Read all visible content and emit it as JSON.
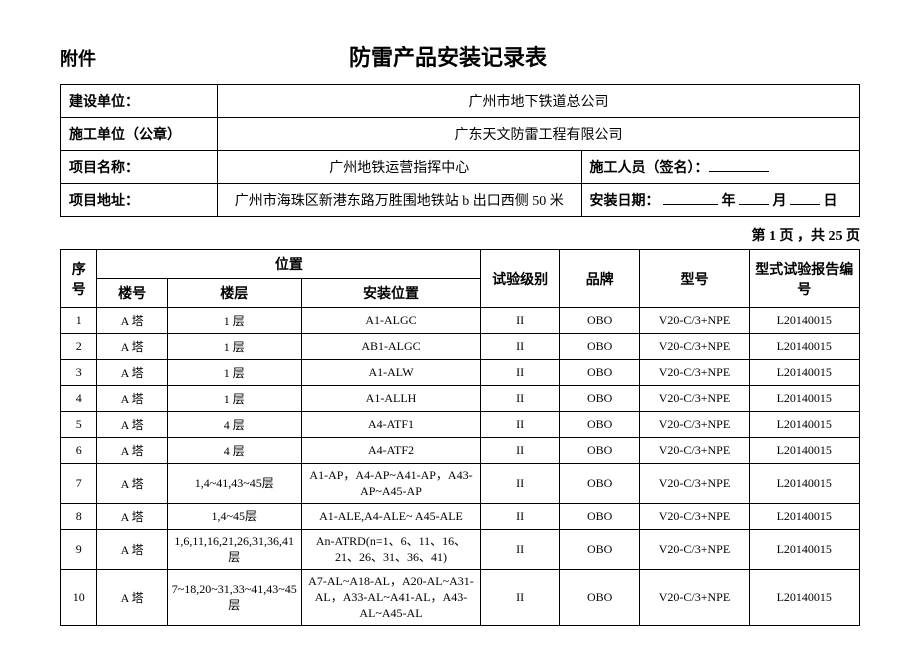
{
  "header": {
    "attachment": "附件",
    "title": "防雷产品安装记录表"
  },
  "info": {
    "builder_label": "建设单位：",
    "builder_value": "广州市地下铁道总公司",
    "contractor_label": "施工单位（公章）",
    "contractor_value": "广东天文防雷工程有限公司",
    "project_name_label": "项目名称：",
    "project_name_value": "广州地铁运营指挥中心",
    "staff_label": "施工人员（签名）：",
    "address_label": "项目地址：",
    "address_value": "广州市海珠区新港东路万胜围地铁站 b 出口西侧 50 米",
    "install_date_label": "安装日期：",
    "year_unit": "年",
    "month_unit": "月",
    "day_unit": "日"
  },
  "pager": {
    "text": "第 1 页 ，共 25 页"
  },
  "table": {
    "headers": {
      "seq": "序号",
      "location": "位置",
      "building": "楼号",
      "floor": "楼层",
      "position": "安装位置",
      "test_level": "试验级别",
      "brand": "品牌",
      "model": "型号",
      "report_no": "型式试验报告编号"
    },
    "rows": [
      {
        "seq": "1",
        "building": "A 塔",
        "floor": "1 层",
        "position": "A1-ALGC",
        "level": "II",
        "brand": "OBO",
        "model": "V20-C/3+NPE",
        "report": "L20140015"
      },
      {
        "seq": "2",
        "building": "A 塔",
        "floor": "1 层",
        "position": "AB1-ALGC",
        "level": "II",
        "brand": "OBO",
        "model": "V20-C/3+NPE",
        "report": "L20140015"
      },
      {
        "seq": "3",
        "building": "A 塔",
        "floor": "1 层",
        "position": "A1-ALW",
        "level": "II",
        "brand": "OBO",
        "model": "V20-C/3+NPE",
        "report": "L20140015"
      },
      {
        "seq": "4",
        "building": "A 塔",
        "floor": "1 层",
        "position": "A1-ALLH",
        "level": "II",
        "brand": "OBO",
        "model": "V20-C/3+NPE",
        "report": "L20140015"
      },
      {
        "seq": "5",
        "building": "A 塔",
        "floor": "4 层",
        "position": "A4-ATF1",
        "level": "II",
        "brand": "OBO",
        "model": "V20-C/3+NPE",
        "report": "L20140015"
      },
      {
        "seq": "6",
        "building": "A 塔",
        "floor": "4 层",
        "position": "A4-ATF2",
        "level": "II",
        "brand": "OBO",
        "model": "V20-C/3+NPE",
        "report": "L20140015"
      },
      {
        "seq": "7",
        "building": "A 塔",
        "floor": "1,4~41,43~45层",
        "position": "A1-AP，A4-AP~A41-AP，A43-AP~A45-AP",
        "level": "II",
        "brand": "OBO",
        "model": "V20-C/3+NPE",
        "report": "L20140015"
      },
      {
        "seq": "8",
        "building": "A 塔",
        "floor": "1,4~45层",
        "position": "A1-ALE,A4-ALE~ A45-ALE",
        "level": "II",
        "brand": "OBO",
        "model": "V20-C/3+NPE",
        "report": "L20140015"
      },
      {
        "seq": "9",
        "building": "A 塔",
        "floor": "1,6,11,16,21,26,31,36,41层",
        "position": "An-ATRD(n=1、6、11、16、21、26、31、36、41)",
        "level": "II",
        "brand": "OBO",
        "model": "V20-C/3+NPE",
        "report": "L20140015"
      },
      {
        "seq": "10",
        "building": "A 塔",
        "floor": "7~18,20~31,33~41,43~45层",
        "position": "A7-AL~A18-AL，A20-AL~A31-AL，A33-AL~A41-AL，A43-AL~A45-AL",
        "level": "II",
        "brand": "OBO",
        "model": "V20-C/3+NPE",
        "report": "L20140015"
      }
    ]
  }
}
